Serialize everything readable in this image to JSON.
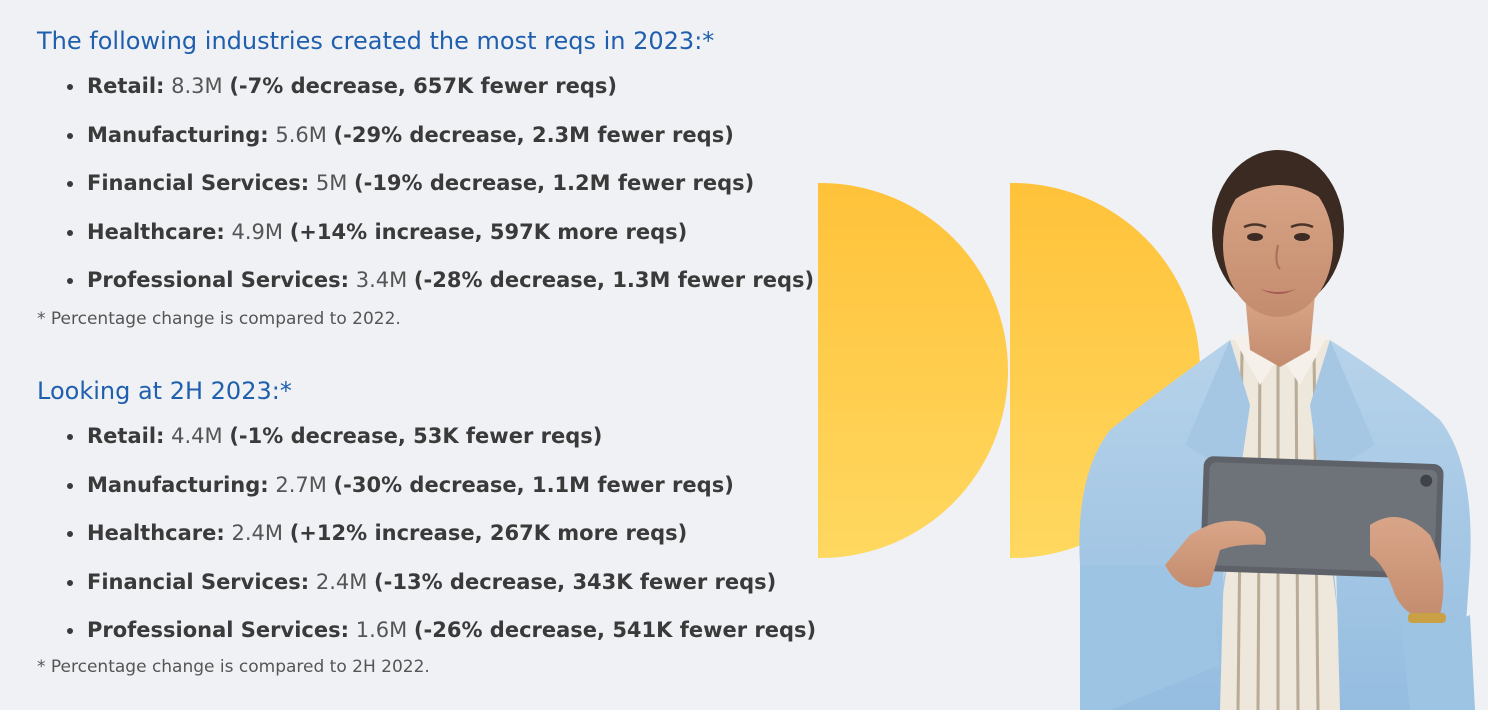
{
  "section1": {
    "heading": "The following industries created the most reqs in 2023:*",
    "items": [
      {
        "label": "Retail:",
        "value": "8.3M",
        "change": "(-7% decrease, 657K fewer reqs)"
      },
      {
        "label": "Manufacturing:",
        "value": "5.6M",
        "change": "(-29% decrease, 2.3M fewer reqs)"
      },
      {
        "label": "Financial Services:",
        "value": "5M",
        "change": "(-19% decrease, 1.2M fewer reqs)"
      },
      {
        "label": "Healthcare:",
        "value": "4.9M",
        "change": "(+14% increase, 597K more reqs)"
      },
      {
        "label": "Professional Services:",
        "value": "3.4M",
        "change": "(-28% decrease, 1.3M fewer reqs)"
      }
    ],
    "footnote": "* Percentage change is compared to 2022."
  },
  "section2": {
    "heading": "Looking at 2H 2023:*",
    "items": [
      {
        "label": "Retail:",
        "value": "4.4M",
        "change": "(-1% decrease, 53K fewer reqs)"
      },
      {
        "label": "Manufacturing:",
        "value": "2.7M",
        "change": "(-30% decrease, 1.1M fewer reqs)"
      },
      {
        "label": "Healthcare:",
        "value": "2.4M",
        "change": "(+12% increase, 267K more reqs)"
      },
      {
        "label": "Financial Services:",
        "value": "2.4M",
        "change": "(-13% decrease, 343K fewer reqs)"
      },
      {
        "label": "Professional Services:",
        "value": "1.6M",
        "change": "(-26% decrease, 541K fewer reqs)"
      }
    ],
    "footnote": "* Percentage change is compared to 2H 2022."
  },
  "colors": {
    "heading": "#1f5fae",
    "accent_top": "#ffc23a",
    "accent_bottom": "#ffd860",
    "background": "#eff1f4"
  }
}
